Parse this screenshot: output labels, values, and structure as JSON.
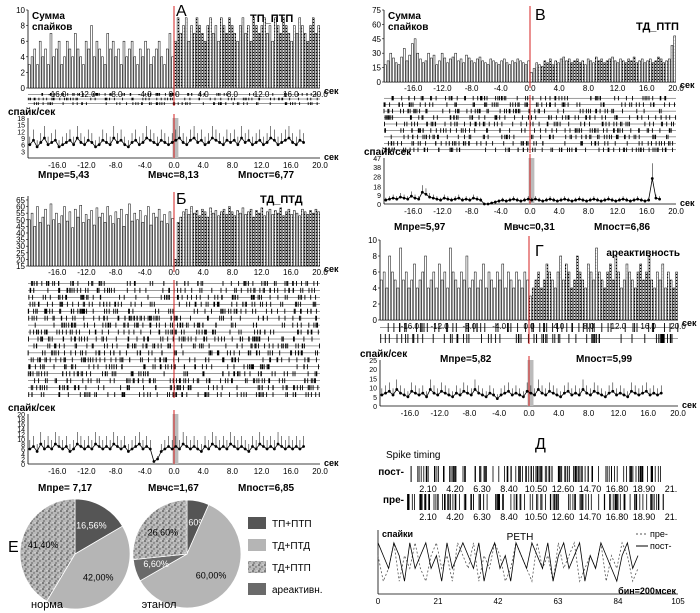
{
  "chart_data": [
    {
      "id": "A",
      "type": "bar",
      "title": "ТП_ПТП",
      "letter": "А",
      "ylabel": "Сумма спайков",
      "xlabel": "сек",
      "xticks": [
        "-16.0",
        "-12.0",
        "-8.0",
        "-4.0",
        "0.0",
        "4.0",
        "8.0",
        "12.0",
        "16.0",
        "20.0"
      ],
      "yticks": [
        "0",
        "2",
        "4",
        "6",
        "8",
        "10"
      ],
      "ylim": [
        0,
        10
      ],
      "xlim": [
        -20,
        20
      ],
      "hist_pre": [
        3,
        4,
        5,
        3,
        6,
        4,
        5,
        3,
        7,
        4,
        5,
        6,
        3,
        4,
        6,
        5,
        4,
        7,
        5,
        4,
        3,
        6,
        5,
        8,
        4,
        6,
        5,
        4,
        3,
        7,
        5,
        6,
        4,
        5,
        3,
        6,
        4,
        5,
        6,
        4,
        3,
        5,
        4,
        6,
        5,
        3,
        4,
        5,
        6,
        4,
        3,
        5,
        7,
        4
      ],
      "hist_post": [
        6,
        9,
        7,
        8,
        9,
        6,
        8,
        7,
        9,
        8,
        7,
        6,
        8,
        9,
        7,
        8,
        6,
        9,
        8,
        7,
        9,
        8,
        7,
        6,
        8,
        9,
        7,
        8,
        6,
        9,
        8,
        7,
        8,
        9,
        7,
        8,
        6,
        9,
        8,
        7,
        9,
        8,
        7,
        6,
        8,
        7,
        9,
        8,
        7,
        6,
        8,
        9,
        7,
        8
      ],
      "raster_rows": 3,
      "rate_ylabel": "спайк/сек",
      "rate_yticks": [
        "3",
        "6",
        "9",
        "12",
        "15",
        "18"
      ],
      "rate_ylim": [
        0,
        18
      ],
      "rate": [
        6,
        8,
        5,
        7,
        9,
        6,
        7,
        8,
        5,
        6,
        7,
        8,
        6,
        9,
        7,
        6,
        8,
        7,
        5,
        6,
        8,
        7,
        6,
        9,
        7,
        8,
        6,
        5,
        7,
        8,
        6,
        7,
        9,
        8,
        7,
        6,
        8,
        7,
        6,
        7,
        8,
        9,
        7,
        6,
        8,
        9,
        7,
        8,
        6,
        7,
        9,
        8,
        7,
        6,
        8,
        7,
        8,
        6,
        9,
        7,
        8,
        6,
        7,
        8,
        6,
        7,
        9,
        8,
        6,
        7,
        8,
        9,
        7,
        6,
        8,
        7
      ],
      "stats": {
        "pre": "Мпре=5,43",
        "mid": "Мвчс=8,13",
        "post": "Мпост=6,77"
      }
    },
    {
      "id": "V",
      "type": "bar",
      "title": "ТД_ПТП",
      "letter": "В",
      "ylabel": "Сумма спайков",
      "xlabel": "сек",
      "xticks": [
        "-16.0",
        "-12.0",
        "-8.0",
        "-4.0",
        "0.0",
        "4.0",
        "8.0",
        "12.0",
        "16.0",
        "20.0"
      ],
      "yticks": [
        "0",
        "15",
        "30",
        "45",
        "60",
        "75"
      ],
      "ylim": [
        0,
        75
      ],
      "xlim": [
        -20,
        20
      ],
      "hist_pre": [
        18,
        22,
        30,
        25,
        20,
        18,
        26,
        35,
        22,
        28,
        40,
        45,
        30,
        24,
        20,
        22,
        30,
        25,
        28,
        18,
        22,
        30,
        25,
        20,
        24,
        26,
        30,
        22,
        24,
        20,
        28,
        25,
        22,
        20,
        24,
        26,
        22,
        20,
        18,
        24,
        22,
        20,
        18,
        22,
        24,
        20,
        18,
        22,
        20,
        24,
        22,
        20,
        18,
        22
      ],
      "hist_post": [
        10,
        14,
        20,
        18,
        16,
        22,
        20,
        24,
        18,
        22,
        20,
        24,
        26,
        22,
        24,
        20,
        22,
        24,
        20,
        22,
        18,
        24,
        22,
        20,
        26,
        22,
        24,
        20,
        22,
        24,
        26,
        22,
        20,
        24,
        22,
        20,
        24,
        22,
        26,
        20,
        22,
        24,
        20,
        22,
        24,
        20,
        22,
        26,
        24,
        20,
        22,
        24,
        38,
        48
      ],
      "raster_rows": 9,
      "rate_ylabel": "спайк/сек",
      "rate_yticks": [
        "0",
        "9",
        "18",
        "28",
        "38",
        "47"
      ],
      "rate_ylim": [
        0,
        47
      ],
      "rate": [
        4,
        5,
        6,
        5,
        7,
        6,
        5,
        8,
        6,
        5,
        12,
        10,
        7,
        6,
        5,
        4,
        6,
        5,
        4,
        5,
        6,
        4,
        5,
        4,
        6,
        5,
        4,
        0,
        0,
        1,
        2,
        3,
        4,
        3,
        4,
        5,
        4,
        3,
        4,
        5,
        4,
        5,
        4,
        3,
        4,
        5,
        4,
        3,
        4,
        5,
        4,
        3,
        4,
        5,
        4,
        3,
        4,
        5,
        4,
        3,
        4,
        5,
        4,
        3,
        4,
        5,
        4,
        3,
        4,
        5,
        4,
        3,
        4,
        26,
        6,
        5
      ],
      "stats": {
        "pre": "Мпре=5,97",
        "mid": "Мвчс=0,31",
        "post": "Мпост=6,86"
      }
    },
    {
      "id": "B",
      "type": "bar",
      "title": "ТД_ПТД",
      "letter": "Б",
      "ylabel": "",
      "xlabel": "сек",
      "xticks": [
        "-16.0",
        "-12.0",
        "-8.0",
        "-4.0",
        "0.0",
        "4.0",
        "8.0",
        "12.0",
        "16.0",
        "20.0"
      ],
      "yticks": [
        "15",
        "20",
        "25",
        "30",
        "35",
        "40",
        "45",
        "50",
        "55",
        "60",
        "65"
      ],
      "ylim": [
        15,
        68
      ],
      "xlim": [
        -20,
        20
      ],
      "hist_pre": [
        50,
        55,
        45,
        60,
        48,
        52,
        58,
        46,
        62,
        50,
        55,
        47,
        53,
        60,
        49,
        56,
        44,
        58,
        52,
        61,
        48,
        54,
        50,
        57,
        46,
        59,
        52,
        55,
        48,
        60,
        53,
        47,
        56,
        51,
        58,
        45,
        54,
        62,
        49,
        55,
        50,
        57,
        48,
        53,
        60,
        46,
        55,
        52,
        58,
        49,
        54,
        47,
        56,
        51
      ],
      "hist_post": [
        20,
        48,
        52,
        56,
        58,
        54,
        60,
        55,
        57,
        53,
        58,
        56,
        52,
        59,
        55,
        57,
        53,
        56,
        58,
        54,
        60,
        56,
        53,
        57,
        55,
        59,
        54,
        56,
        58,
        52,
        57,
        55,
        59,
        53,
        56,
        58,
        54,
        57,
        55,
        59,
        53,
        56,
        58,
        54,
        57,
        55,
        53,
        58,
        56,
        54,
        57,
        55,
        58,
        56
      ],
      "raster_rows": 17,
      "rate_ylabel": "спайк/сек",
      "rate_yticks": [
        "0",
        "2",
        "4",
        "6",
        "8",
        "10",
        "12",
        "14",
        "16",
        "18",
        "20"
      ],
      "rate_ylim": [
        0,
        20
      ],
      "rate": [
        6,
        7,
        5,
        8,
        6,
        7,
        6,
        8,
        7,
        6,
        7,
        5,
        6,
        8,
        7,
        6,
        7,
        6,
        8,
        7,
        6,
        7,
        6,
        8,
        7,
        6,
        7,
        5,
        6,
        7,
        8,
        6,
        7,
        6,
        1,
        2,
        5,
        6,
        7,
        6,
        7,
        6,
        8,
        7,
        6,
        7,
        6,
        5,
        7,
        6,
        8,
        7,
        6,
        7,
        6,
        8,
        7,
        6,
        7,
        6,
        5,
        7,
        6,
        8,
        7,
        6,
        7,
        6,
        8,
        7,
        6,
        7,
        6,
        7,
        6,
        7
      ],
      "stats": {
        "pre": "Мпре= 7,17",
        "mid": "Мвчс=1,67",
        "post": "Мпост=6,85"
      }
    },
    {
      "id": "G",
      "type": "bar",
      "title": "ареактивность",
      "letter": "Г",
      "ylabel": "",
      "xlabel": "сек",
      "xticks": [
        "-16.0",
        "-12.0",
        "-8.0",
        "-4.0",
        "0.0",
        "4.0",
        "8.0",
        "12.0",
        "16.0",
        "20.0"
      ],
      "yticks": [
        "0",
        "2",
        "4",
        "6",
        "8",
        "10"
      ],
      "ylim": [
        0,
        10
      ],
      "xlim": [
        -20,
        20
      ],
      "hist_pre": [
        5,
        6,
        4,
        8,
        6,
        5,
        4,
        9,
        5,
        6,
        4,
        5,
        7,
        4,
        5,
        6,
        8,
        4,
        5,
        6,
        4,
        7,
        5,
        6,
        4,
        9,
        6,
        5,
        4,
        6,
        5,
        8,
        4,
        5,
        6,
        4,
        5,
        7,
        4,
        6,
        5,
        4,
        6,
        5,
        7,
        4,
        6,
        5,
        4,
        6,
        5,
        4,
        6,
        5
      ],
      "hist_post": [
        3,
        4,
        5,
        6,
        4,
        5,
        7,
        6,
        5,
        4,
        6,
        8,
        5,
        7,
        6,
        4,
        5,
        8,
        6,
        5,
        4,
        7,
        6,
        5,
        9,
        6,
        5,
        4,
        6,
        7,
        5,
        8,
        6,
        4,
        5,
        7,
        6,
        5,
        4,
        6,
        7,
        5,
        6,
        8,
        5,
        4,
        6,
        5,
        7,
        4,
        6,
        5,
        4,
        6
      ],
      "raster_rows": 2,
      "rate_ylabel": "спайк/сек",
      "rate_yticks": [
        "0",
        "5",
        "10",
        "15",
        "20",
        "25"
      ],
      "rate_ylim": [
        0,
        25
      ],
      "rate": [
        6,
        7,
        8,
        6,
        9,
        7,
        6,
        5,
        8,
        7,
        6,
        7,
        5,
        9,
        7,
        6,
        8,
        7,
        6,
        5,
        7,
        6,
        8,
        7,
        6,
        9,
        7,
        6,
        5,
        7,
        6,
        4,
        6,
        7,
        8,
        6,
        7,
        6,
        5,
        8,
        7,
        6,
        9,
        7,
        6,
        8,
        7,
        6,
        5,
        7,
        8,
        6,
        7,
        6,
        9,
        7,
        6,
        8,
        7,
        6,
        5,
        7,
        8,
        6,
        7,
        6,
        5,
        8,
        7,
        6,
        7,
        8,
        6,
        7,
        6,
        7
      ],
      "stats": {
        "pre": "Мпре=5,82",
        "mid": "",
        "post": "Мпост=5,99"
      }
    },
    {
      "id": "D",
      "type": "line",
      "letter": "Д",
      "title": "Spike timing",
      "raster_labels": [
        "пост-",
        "пре-"
      ],
      "xticks": [
        "2.10",
        "4.20",
        "6.30",
        "8.40",
        "10.50",
        "12.60",
        "14.70",
        "16.80",
        "18.90",
        "21."
      ],
      "peth_title": "PETH",
      "peth_ylabel": "спайки",
      "peth_yticks": [
        "0",
        "1",
        "2",
        "3",
        "4",
        "5"
      ],
      "peth_ylim": [
        0,
        5
      ],
      "peth_xticks": [
        "0",
        "21",
        "42",
        "63",
        "84",
        "105"
      ],
      "peth_xlim": [
        0,
        105
      ],
      "series": [
        {
          "name": "пре-",
          "values": [
            3,
            1,
            2,
            4,
            1,
            3,
            2,
            4,
            2,
            1,
            3,
            4,
            2,
            3,
            1,
            4,
            3,
            2,
            4,
            1,
            3,
            2,
            4,
            3,
            1,
            2,
            4,
            3,
            2,
            1,
            4,
            2,
            3,
            1,
            4,
            2,
            3,
            4,
            1,
            2,
            3,
            2,
            4,
            1,
            3,
            2,
            4,
            3,
            1,
            2
          ]
        },
        {
          "name": "пост-",
          "values": [
            4,
            3,
            2,
            4,
            3,
            1,
            4,
            2,
            3,
            4,
            2,
            3,
            1,
            4,
            2,
            3,
            4,
            3,
            2,
            4,
            1,
            3,
            4,
            2,
            3,
            1,
            4,
            3,
            2,
            4,
            3,
            2,
            4,
            1,
            3,
            4,
            2,
            3,
            4,
            1,
            3,
            2,
            4,
            3,
            2,
            1,
            3,
            4,
            2,
            3
          ]
        }
      ],
      "bin_label": "бин=200мсек"
    },
    {
      "id": "E",
      "type": "pie",
      "letter": "Е",
      "legend": [
        {
          "label": "ТП+ПТП",
          "color": "#555555"
        },
        {
          "label": "ТД+ПТД",
          "color": "#b5b5b5"
        },
        {
          "label": "ТД+ПТП",
          "color": "#c8c8c8"
        },
        {
          "label": "ареактивн.",
          "color": "#6a6a6a"
        }
      ],
      "pies": [
        {
          "name": "норма",
          "slices": [
            {
              "label": "16,56%",
              "value": 16.56,
              "kind": "ТП+ПТП"
            },
            {
              "label": "42,00%",
              "value": 42.0,
              "kind": "ТД+ПТД"
            },
            {
              "label": "41,40%",
              "value": 41.4,
              "kind": "ТД+ПТП"
            }
          ]
        },
        {
          "name": "этанол",
          "slices": [
            {
              "label": "6,60%",
              "value": 6.6,
              "kind": "ТП+ПТП"
            },
            {
              "label": "60,00%",
              "value": 60.0,
              "kind": "ТД+ПТД"
            },
            {
              "label": "6,60%",
              "value": 6.6,
              "kind": "ареактивн."
            },
            {
              "label": "26,60%",
              "value": 26.6,
              "kind": "ТД+ПТП"
            }
          ]
        }
      ]
    }
  ]
}
